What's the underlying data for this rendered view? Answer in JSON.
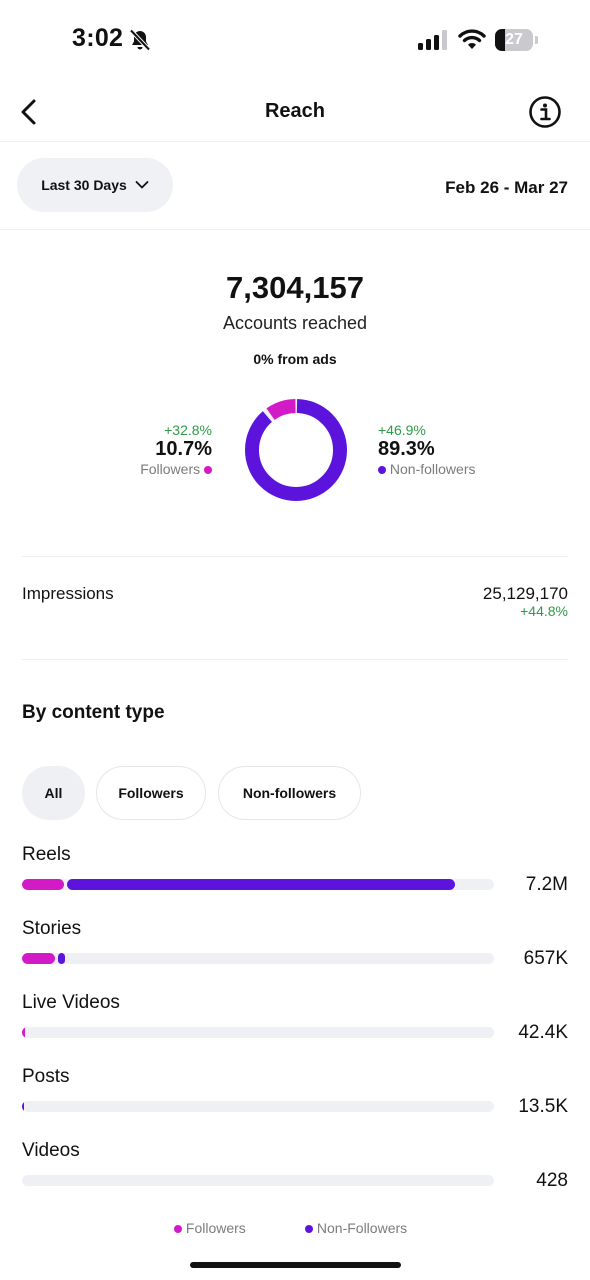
{
  "status_bar": {
    "time": "3:02",
    "battery": "27",
    "battery_level": 0.27
  },
  "header": {
    "title": "Reach"
  },
  "range": {
    "label": "Last 30 Days",
    "dates": "Feb 26 - Mar 27"
  },
  "reach": {
    "total": "7,304,157",
    "label": "Accounts reached",
    "ads": "0% from ads",
    "followers": {
      "change": "+32.8%",
      "pct": "10.7%",
      "label": "Followers",
      "fraction": 0.107
    },
    "non_followers": {
      "change": "+46.9%",
      "pct": "89.3%",
      "label": "Non-followers",
      "fraction": 0.893
    }
  },
  "impressions": {
    "label": "Impressions",
    "value": "25,129,170",
    "change": "+44.8%"
  },
  "content_type": {
    "title": "By content type",
    "tabs": [
      "All",
      "Followers",
      "Non-followers"
    ],
    "rows": [
      {
        "label": "Reels",
        "value": "7.2M",
        "followers_fraction": 0.09,
        "non_followers_fraction": 0.82
      },
      {
        "label": "Stories",
        "value": "657K",
        "followers_fraction": 0.07,
        "non_followers_fraction": 0.015
      },
      {
        "label": "Live Videos",
        "value": "42.4K",
        "followers_fraction": 0.006,
        "non_followers_fraction": 0.0
      },
      {
        "label": "Posts",
        "value": "13.5K",
        "followers_fraction": 0.0,
        "non_followers_fraction": 0.004
      },
      {
        "label": "Videos",
        "value": "428",
        "followers_fraction": 0.0,
        "non_followers_fraction": 0.0
      }
    ],
    "legend": {
      "followers": "Followers",
      "non_followers": "Non-Followers"
    }
  },
  "colors": {
    "followers": "#d21bc6",
    "non_followers": "#5c14dc",
    "positive": "#2e9b48"
  }
}
